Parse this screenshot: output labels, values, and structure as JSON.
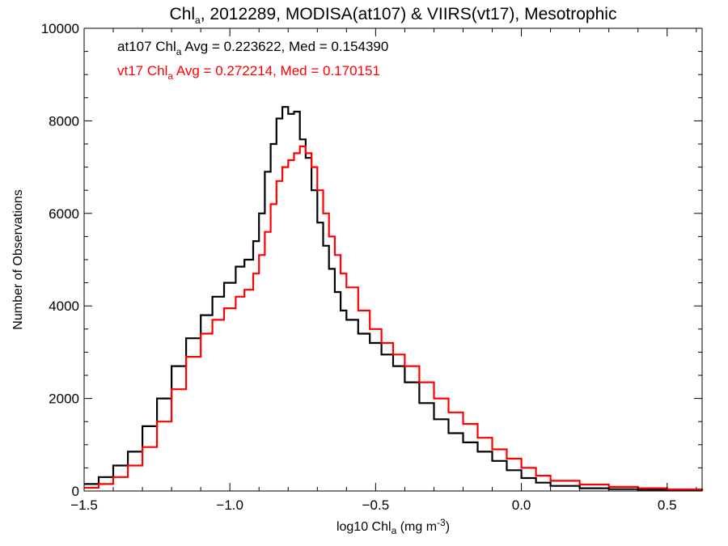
{
  "chart_data": {
    "type": "line",
    "title": {
      "base": "Chl",
      "sub": "a",
      "rest": ", 2012289, MODISA(at107) & VIIRS(vt17), Mesotrophic"
    },
    "xlabel": {
      "base": "log10 Chl",
      "sub": "a",
      "rest_before": " (mg m",
      "sup": "-3",
      "rest_after": ")"
    },
    "ylabel": "Number of Observations",
    "xlim": [
      -1.5,
      0.62
    ],
    "ylim": [
      0,
      10000
    ],
    "x_ticks": [
      -1.5,
      -1.0,
      -0.5,
      0.0,
      0.5
    ],
    "x_tick_labels": [
      "-1.5",
      "-1.0",
      "-0.5",
      "0.0",
      "0.5"
    ],
    "y_ticks": [
      0,
      2000,
      4000,
      6000,
      8000,
      10000
    ],
    "y_tick_labels": [
      "0",
      "2000",
      "4000",
      "6000",
      "8000",
      "10000"
    ],
    "grid": false,
    "step": true,
    "series": [
      {
        "name": "at107",
        "color": "#000000",
        "annotation": {
          "prefix": "at107 Chl",
          "sub": "a",
          "suffix": " Avg = 0.223622, Med = 0.154390"
        },
        "points": [
          [
            -1.5,
            150
          ],
          [
            -1.45,
            300
          ],
          [
            -1.4,
            550
          ],
          [
            -1.35,
            850
          ],
          [
            -1.3,
            1400
          ],
          [
            -1.25,
            2000
          ],
          [
            -1.2,
            2700
          ],
          [
            -1.15,
            3300
          ],
          [
            -1.1,
            3800
          ],
          [
            -1.06,
            4200
          ],
          [
            -1.02,
            4500
          ],
          [
            -0.98,
            4850
          ],
          [
            -0.95,
            5000
          ],
          [
            -0.92,
            5400
          ],
          [
            -0.9,
            6000
          ],
          [
            -0.88,
            6900
          ],
          [
            -0.86,
            7500
          ],
          [
            -0.84,
            8050
          ],
          [
            -0.82,
            8300
          ],
          [
            -0.8,
            8150
          ],
          [
            -0.78,
            8200
          ],
          [
            -0.76,
            7600
          ],
          [
            -0.74,
            7200
          ],
          [
            -0.72,
            6500
          ],
          [
            -0.7,
            5800
          ],
          [
            -0.68,
            5300
          ],
          [
            -0.66,
            4800
          ],
          [
            -0.64,
            4300
          ],
          [
            -0.62,
            3900
          ],
          [
            -0.6,
            3700
          ],
          [
            -0.56,
            3400
          ],
          [
            -0.52,
            3200
          ],
          [
            -0.48,
            2950
          ],
          [
            -0.44,
            2700
          ],
          [
            -0.4,
            2350
          ],
          [
            -0.35,
            1900
          ],
          [
            -0.3,
            1550
          ],
          [
            -0.25,
            1250
          ],
          [
            -0.2,
            1050
          ],
          [
            -0.15,
            850
          ],
          [
            -0.1,
            650
          ],
          [
            -0.05,
            450
          ],
          [
            0.0,
            280
          ],
          [
            0.05,
            180
          ],
          [
            0.1,
            110
          ],
          [
            0.2,
            60
          ],
          [
            0.3,
            40
          ],
          [
            0.4,
            30
          ],
          [
            0.5,
            15
          ],
          [
            0.62,
            5
          ]
        ]
      },
      {
        "name": "vt17",
        "color": "#ff0000",
        "annotation": {
          "prefix": "vt17 Chl",
          "sub": "a",
          "suffix": " Avg = 0.272214, Med = 0.170151"
        },
        "points": [
          [
            -1.5,
            70
          ],
          [
            -1.45,
            150
          ],
          [
            -1.4,
            300
          ],
          [
            -1.35,
            550
          ],
          [
            -1.3,
            950
          ],
          [
            -1.25,
            1500
          ],
          [
            -1.2,
            2200
          ],
          [
            -1.15,
            2900
          ],
          [
            -1.1,
            3400
          ],
          [
            -1.06,
            3700
          ],
          [
            -1.02,
            3950
          ],
          [
            -0.98,
            4200
          ],
          [
            -0.95,
            4350
          ],
          [
            -0.92,
            4700
          ],
          [
            -0.9,
            5100
          ],
          [
            -0.88,
            5600
          ],
          [
            -0.86,
            6200
          ],
          [
            -0.84,
            6700
          ],
          [
            -0.82,
            7000
          ],
          [
            -0.8,
            7150
          ],
          [
            -0.78,
            7300
          ],
          [
            -0.76,
            7450
          ],
          [
            -0.74,
            7300
          ],
          [
            -0.72,
            7000
          ],
          [
            -0.7,
            6500
          ],
          [
            -0.68,
            6000
          ],
          [
            -0.66,
            5500
          ],
          [
            -0.64,
            5100
          ],
          [
            -0.62,
            4700
          ],
          [
            -0.6,
            4400
          ],
          [
            -0.56,
            3900
          ],
          [
            -0.52,
            3500
          ],
          [
            -0.48,
            3200
          ],
          [
            -0.44,
            2950
          ],
          [
            -0.4,
            2700
          ],
          [
            -0.35,
            2350
          ],
          [
            -0.3,
            2000
          ],
          [
            -0.25,
            1700
          ],
          [
            -0.2,
            1450
          ],
          [
            -0.15,
            1150
          ],
          [
            -0.1,
            900
          ],
          [
            -0.05,
            700
          ],
          [
            0.0,
            500
          ],
          [
            0.05,
            330
          ],
          [
            0.1,
            220
          ],
          [
            0.2,
            140
          ],
          [
            0.3,
            90
          ],
          [
            0.4,
            60
          ],
          [
            0.5,
            35
          ],
          [
            0.62,
            10
          ]
        ]
      }
    ]
  }
}
